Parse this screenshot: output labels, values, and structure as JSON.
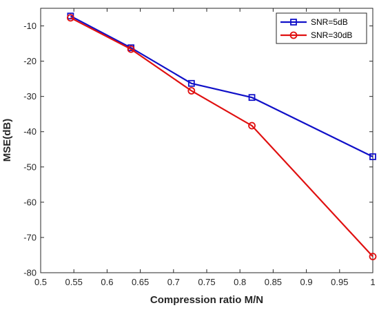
{
  "chart_data": {
    "type": "line",
    "title": "",
    "xlabel": "Compression ratio M/N",
    "ylabel": "MSE(dB)",
    "xlim": [
      0.5,
      1.0
    ],
    "ylim": [
      -80,
      -5
    ],
    "xticks": [
      0.5,
      0.55,
      0.6,
      0.65,
      0.7,
      0.75,
      0.8,
      0.85,
      0.9,
      0.95,
      1.0
    ],
    "xtick_labels": [
      "0.5",
      "0.55",
      "0.6",
      "0.65",
      "0.7",
      "0.75",
      "0.8",
      "0.85",
      "0.9",
      "0.95",
      "1"
    ],
    "yticks": [
      -10,
      -20,
      -30,
      -40,
      -50,
      -60,
      -70,
      -80
    ],
    "ytick_labels": [
      "-10",
      "-20",
      "-30",
      "-40",
      "-50",
      "-60",
      "-70",
      "-80"
    ],
    "grid": false,
    "legend_position": "top-right",
    "x": [
      0.545,
      0.636,
      0.727,
      0.818,
      1.0
    ],
    "series": [
      {
        "name": "SNR=5dB",
        "color": "#1010c8",
        "marker": "square",
        "values": [
          -7.2,
          -16.2,
          -26.3,
          -30.3,
          -47.1
        ]
      },
      {
        "name": "SNR=30dB",
        "color": "#e01010",
        "marker": "circle",
        "values": [
          -7.7,
          -16.6,
          -28.4,
          -38.3,
          -75.4
        ]
      }
    ]
  }
}
